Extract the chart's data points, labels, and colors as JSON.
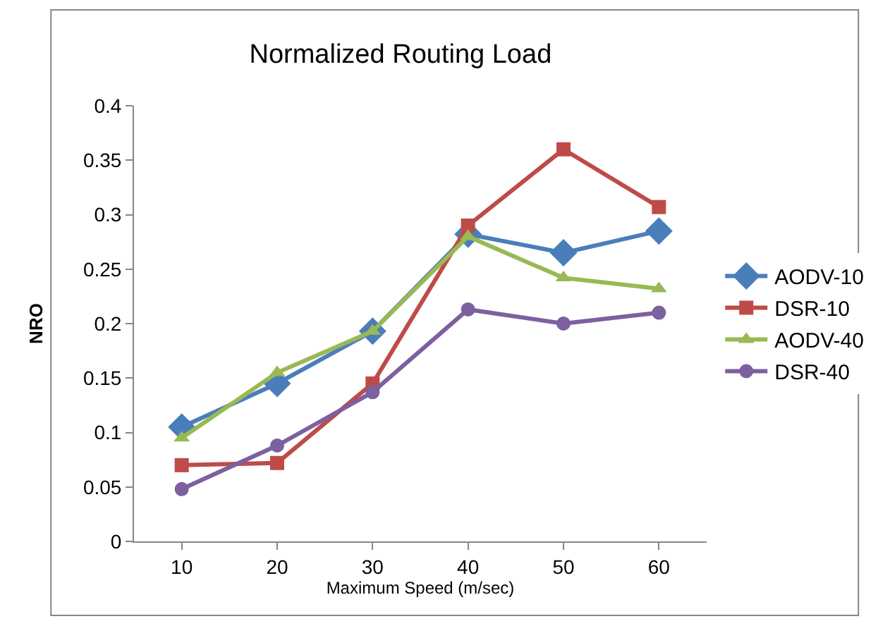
{
  "chart_data": {
    "type": "line",
    "title": "Normalized Routing Load",
    "xlabel": "Maximum Speed (m/sec)",
    "ylabel": "NRO",
    "categories": [
      "10",
      "20",
      "30",
      "40",
      "50",
      "60"
    ],
    "series": [
      {
        "name": "AODV-10",
        "color": "#4a7ebb",
        "marker": "diamond",
        "values": [
          0.105,
          0.145,
          0.193,
          0.282,
          0.265,
          0.285
        ]
      },
      {
        "name": "DSR-10",
        "color": "#be4b48",
        "marker": "square",
        "values": [
          0.07,
          0.072,
          0.145,
          0.29,
          0.36,
          0.307
        ]
      },
      {
        "name": "AODV-40",
        "color": "#98b954",
        "marker": "triangle",
        "values": [
          0.095,
          0.155,
          0.193,
          0.28,
          0.242,
          0.232
        ]
      },
      {
        "name": "DSR-40",
        "color": "#7d60a0",
        "marker": "circle",
        "values": [
          0.048,
          0.088,
          0.137,
          0.213,
          0.2,
          0.21
        ]
      }
    ],
    "ylim": [
      0,
      0.4
    ],
    "yticks": [
      0,
      0.05,
      0.1,
      0.15,
      0.2,
      0.25,
      0.3,
      0.35,
      0.4
    ],
    "grid": false,
    "legend": "right",
    "line_style": "solid"
  }
}
